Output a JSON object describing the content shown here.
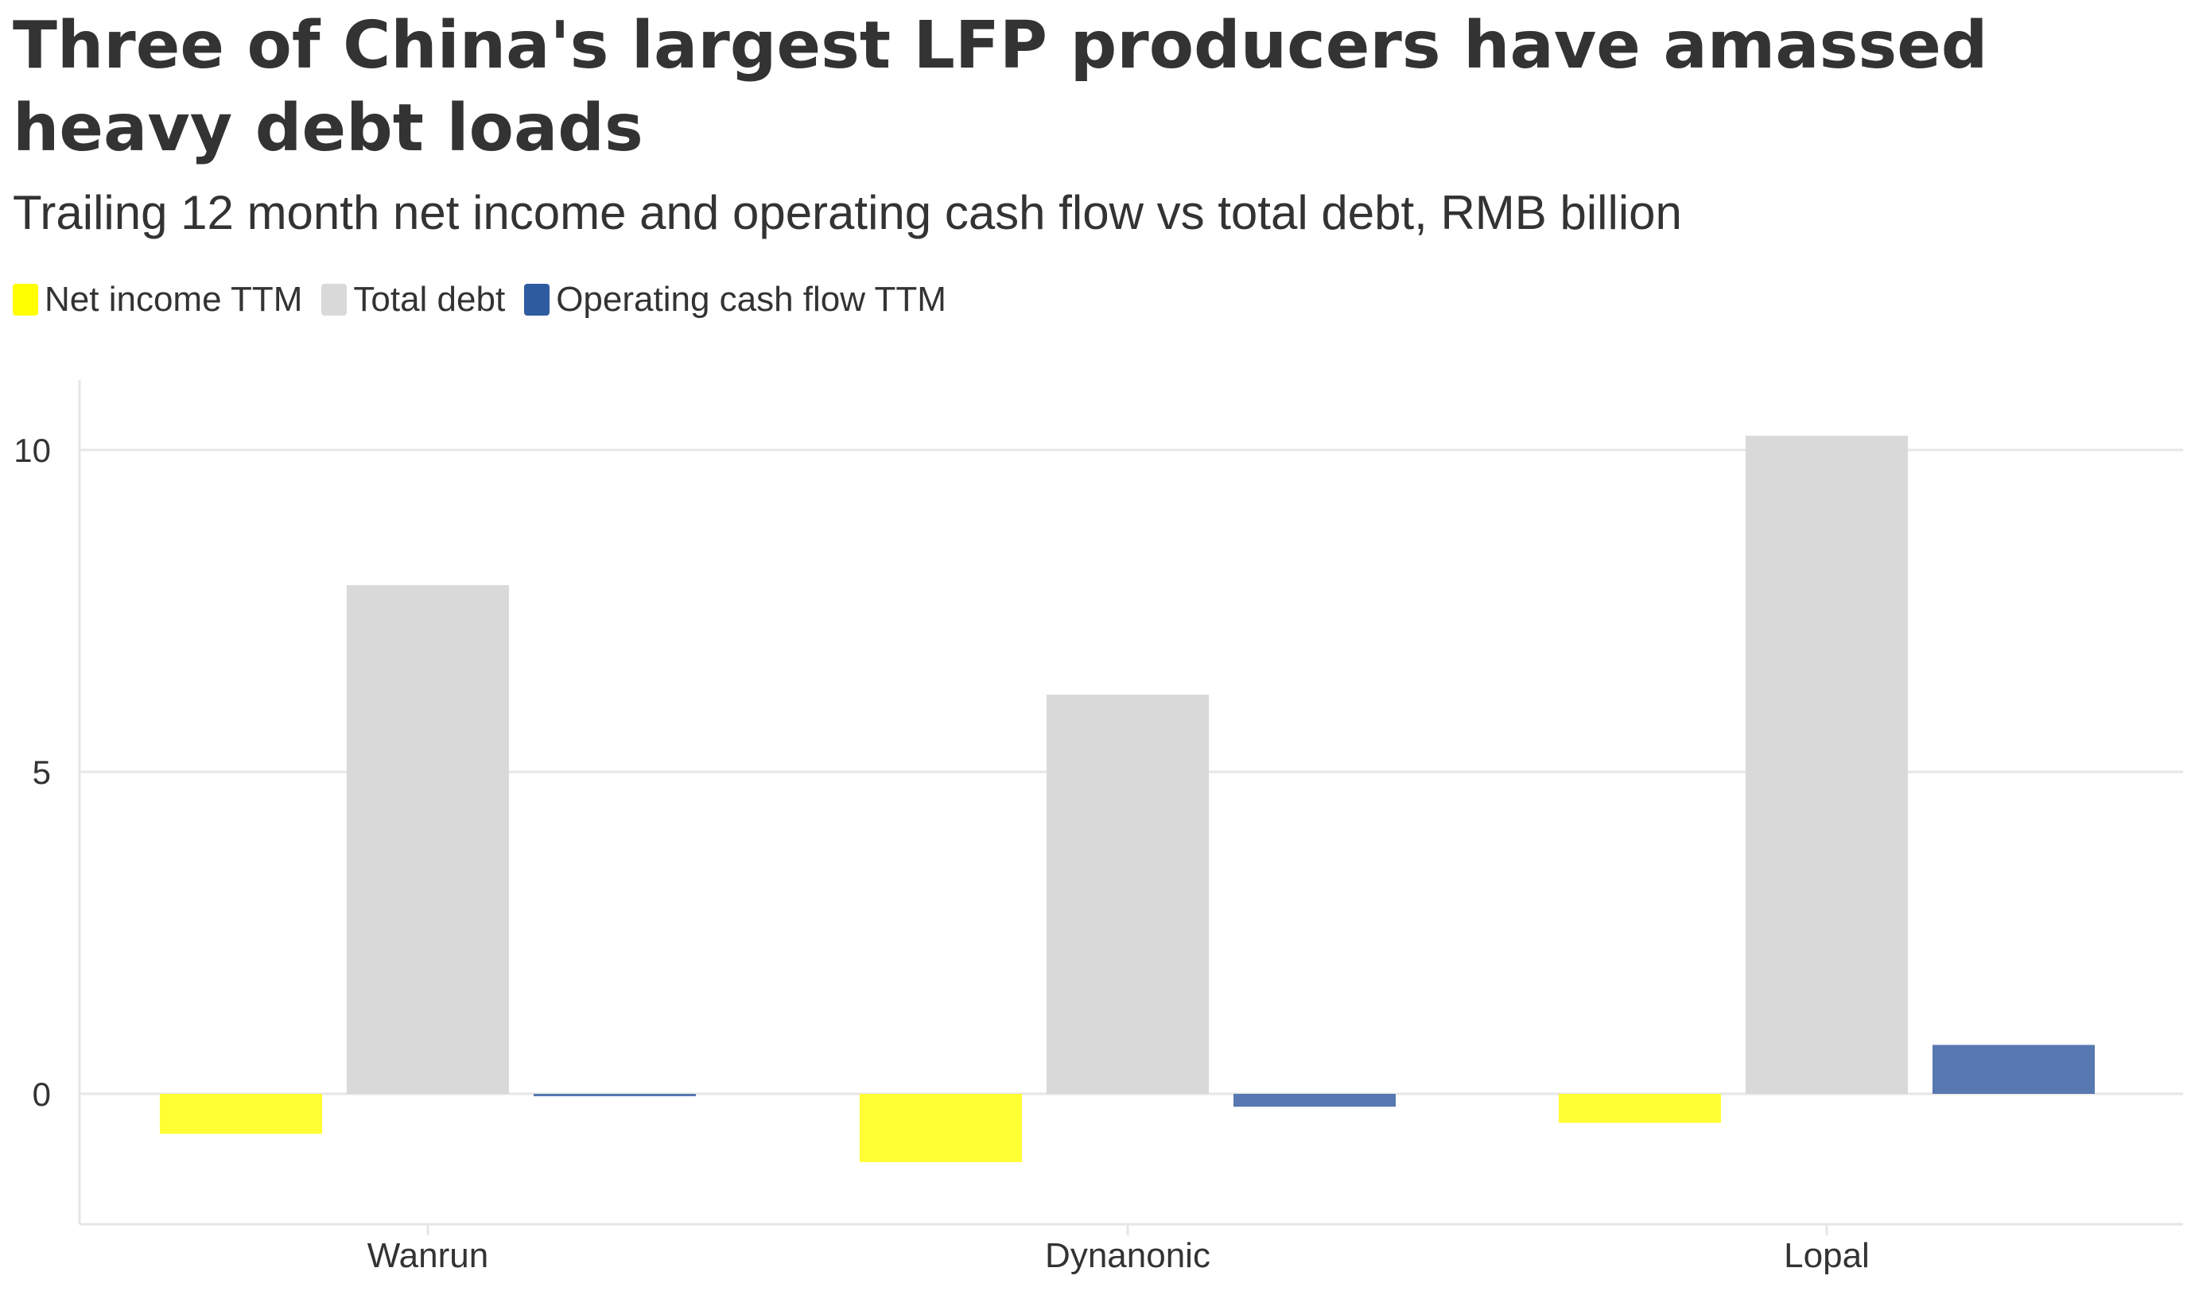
{
  "chart_data": {
    "type": "bar",
    "title": "Three of China's largest LFP producers have amassed heavy debt loads",
    "subtitle": "Trailing 12 month net income and operating cash flow vs total debt, RMB billion",
    "categories": [
      "Wanrun",
      "Dynanonic",
      "Lopal"
    ],
    "series": [
      {
        "name": "Net income TTM",
        "color": "#ffff33",
        "values": [
          -0.62,
          -1.06,
          -0.45
        ]
      },
      {
        "name": "Total debt",
        "color": "#d9d9d9",
        "values": [
          7.9,
          6.2,
          10.22
        ]
      },
      {
        "name": "Operating cash flow TTM",
        "color": "#5778b0",
        "values": [
          -0.03,
          -0.2,
          0.76
        ]
      }
    ],
    "legend_swatch_colors": [
      "#ffff00",
      "#d9d9d9",
      "#2f5ba1"
    ],
    "y_ticks": [
      0,
      5,
      10
    ],
    "y_tick_labels": [
      "0",
      "5",
      "10"
    ],
    "ylim": [
      -1.98,
      11.05
    ],
    "xlabel": "",
    "ylabel": "",
    "grid": true,
    "legend_position": "top-left"
  }
}
